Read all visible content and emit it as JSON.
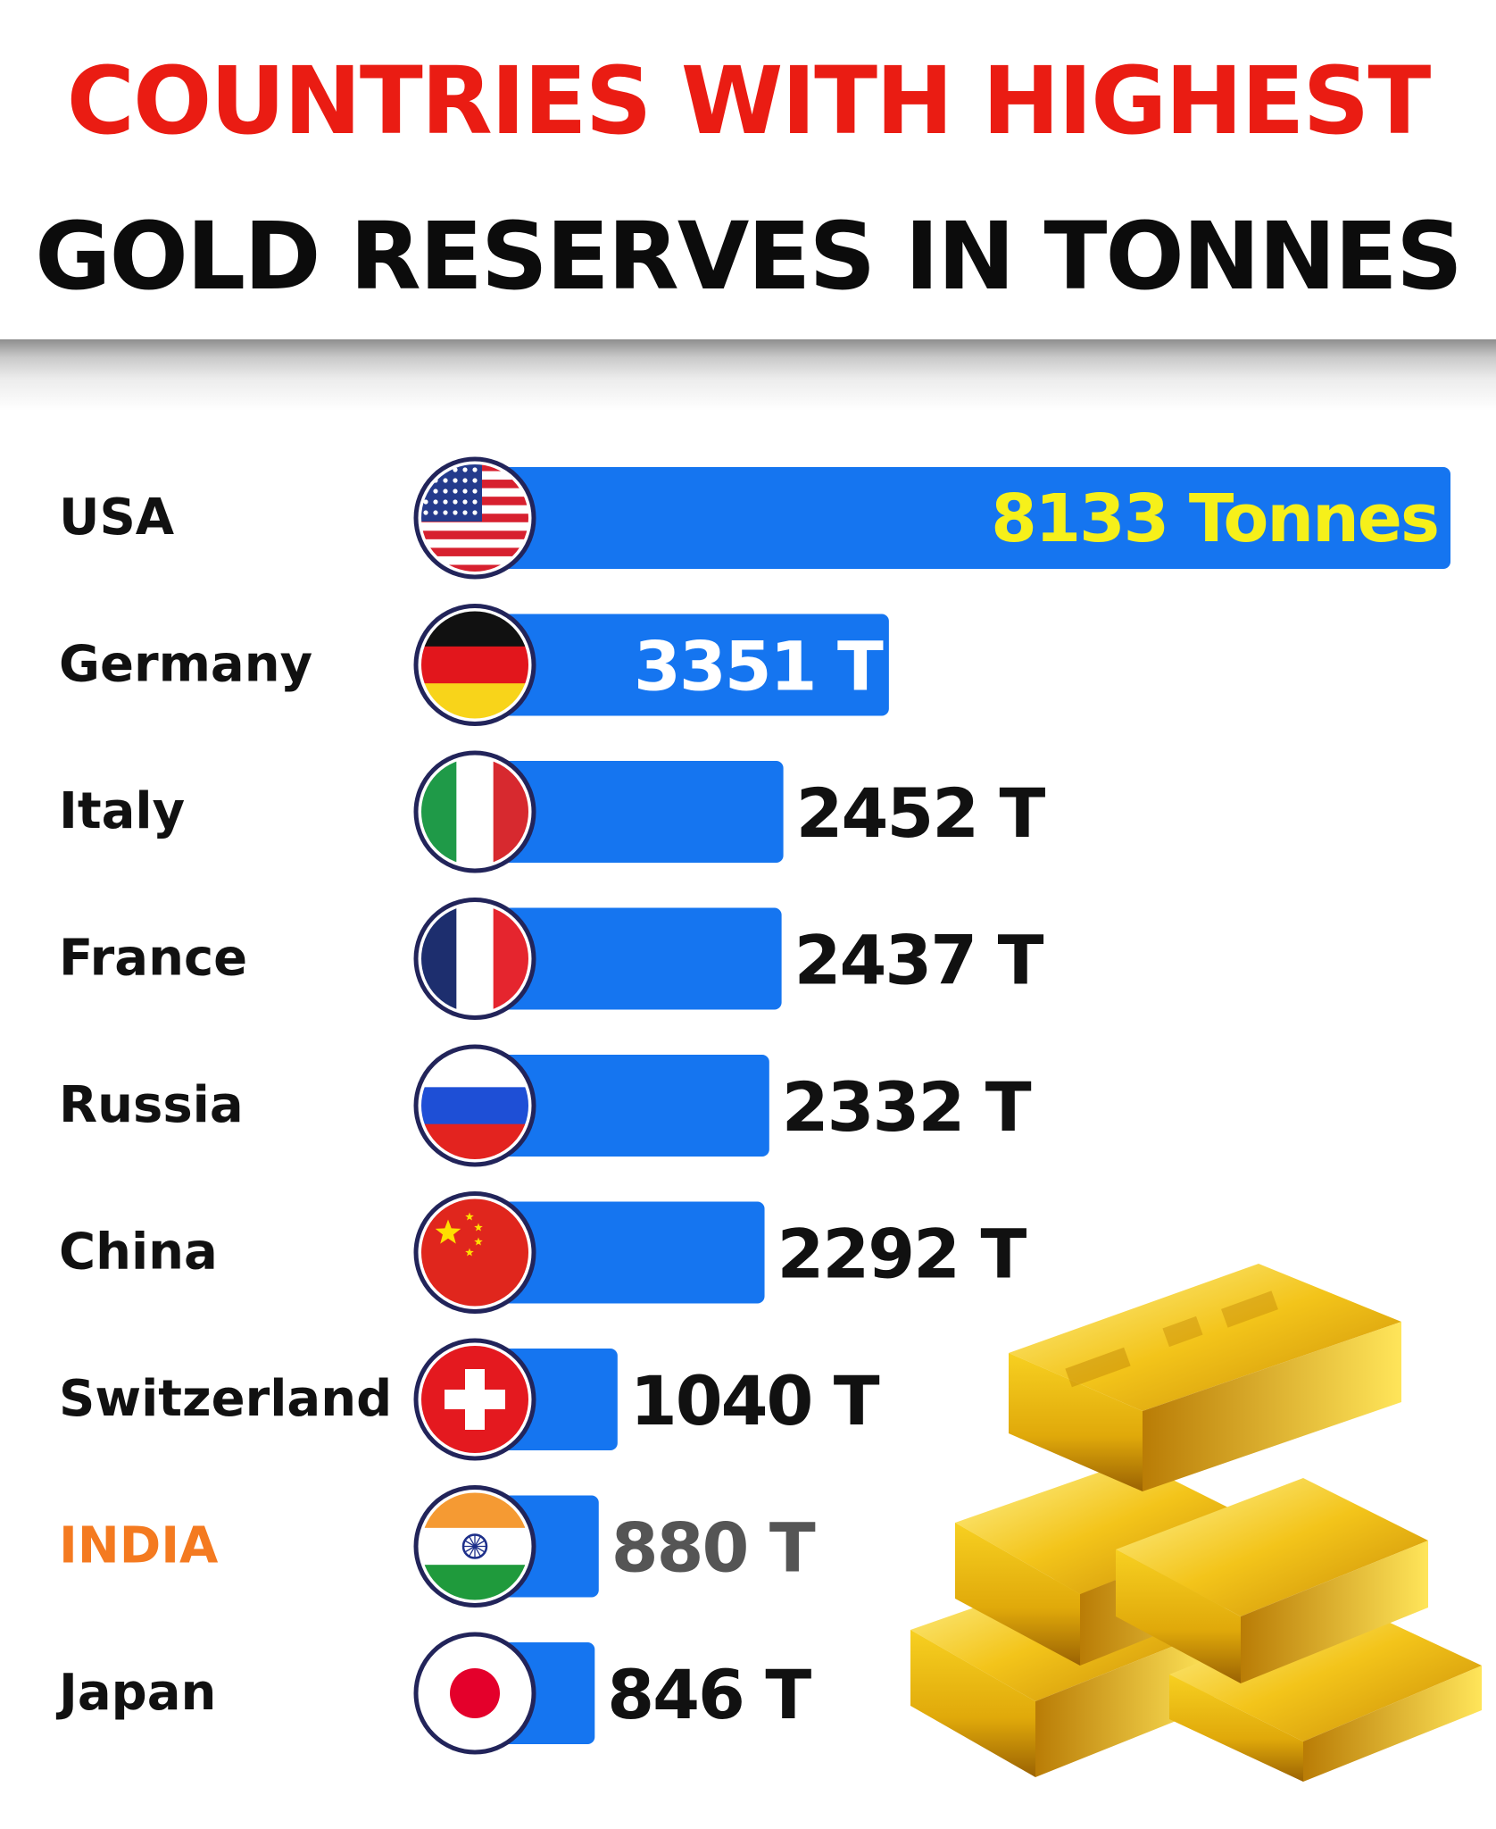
{
  "title": {
    "line1": "COUNTRIES WITH HIGHEST",
    "line2": "GOLD RESERVES IN TONNES"
  },
  "colors": {
    "title_red": "#ea1c13",
    "title_black": "#0c0c0c",
    "bar_blue": "#1575f0",
    "highlight_yellow": "#f6f01a",
    "india_orange": "#f47a20",
    "text_dark": "#111111"
  },
  "chart_data": {
    "type": "bar",
    "orientation": "horizontal",
    "categories": [
      "USA",
      "Germany",
      "Italy",
      "France",
      "Russia",
      "China",
      "Switzerland",
      "INDIA",
      "Japan"
    ],
    "values": [
      8133,
      3351,
      2452,
      2437,
      2332,
      2292,
      1040,
      880,
      846
    ],
    "value_labels": [
      "8133 Tonnes",
      "3351 T",
      "2452 T",
      "2437 T",
      "2332 T",
      "2292 T",
      "1040 T",
      "880 T",
      "846 T"
    ],
    "flags": [
      "us-flag-icon",
      "germany-flag-icon",
      "italy-flag-icon",
      "france-flag-icon",
      "russia-flag-icon",
      "china-flag-icon",
      "switzerland-flag-icon",
      "india-flag-icon",
      "japan-flag-icon"
    ],
    "highlighted_category": "INDIA",
    "grid": false,
    "legend": "none",
    "title": "COUNTRIES WITH HIGHEST GOLD RESERVES IN TONNES",
    "xlabel": "",
    "ylabel": ""
  },
  "decoration": {
    "image": "gold-bars-illustration"
  }
}
